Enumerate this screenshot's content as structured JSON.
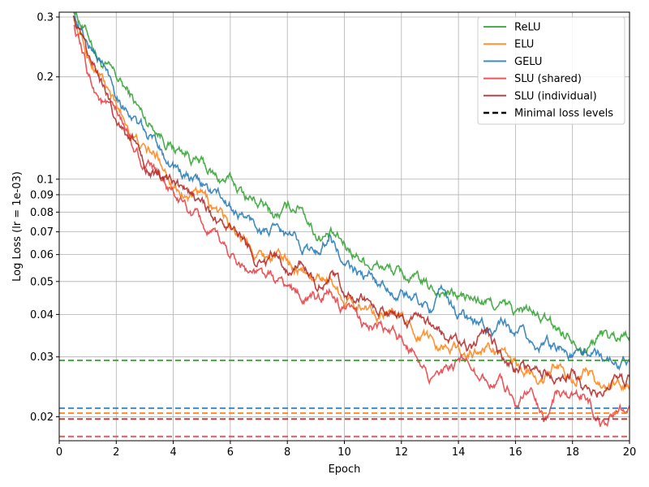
{
  "chart_data": {
    "type": "line",
    "xlabel": "Epoch",
    "ylabel": "Log Loss (lr = 1e-03)",
    "xlim": [
      0,
      20
    ],
    "ylim": [
      0.017,
      0.31
    ],
    "yscale": "log",
    "grid": true,
    "legend_position": "top-right",
    "x_ticks": [
      0,
      2,
      4,
      6,
      8,
      10,
      12,
      14,
      16,
      18,
      20
    ],
    "y_ticks": [
      {
        "value": 0.02,
        "label": "0.02"
      },
      {
        "value": 0.03,
        "label": "0.03"
      },
      {
        "value": 0.04,
        "label": "0.04"
      },
      {
        "value": 0.05,
        "label": "0.05"
      },
      {
        "value": 0.06,
        "label": "0.06"
      },
      {
        "value": 0.07,
        "label": "0.07"
      },
      {
        "value": 0.08,
        "label": "0.08"
      },
      {
        "value": 0.09,
        "label": "0.09"
      },
      {
        "value": 0.1,
        "label": "0.1"
      },
      {
        "value": 0.2,
        "label": "0.2"
      },
      {
        "value": 0.3,
        "label": "0.3"
      }
    ],
    "series": [
      {
        "name": "ReLU",
        "color": "#2ca02c",
        "min_loss": 0.0293,
        "x": [
          0.5,
          1,
          1.5,
          2,
          2.5,
          3,
          3.5,
          4,
          4.5,
          5,
          5.5,
          6,
          6.5,
          7,
          7.5,
          8,
          8.5,
          9,
          9.5,
          10,
          10.5,
          11,
          11.5,
          12,
          12.5,
          13,
          13.5,
          14,
          14.5,
          15,
          15.5,
          16,
          16.5,
          17,
          17.5,
          18,
          18.5,
          19,
          19.5,
          20
        ],
        "values": [
          0.32,
          0.27,
          0.22,
          0.195,
          0.175,
          0.15,
          0.14,
          0.125,
          0.12,
          0.11,
          0.1,
          0.098,
          0.09,
          0.085,
          0.078,
          0.08,
          0.085,
          0.07,
          0.068,
          0.063,
          0.06,
          0.057,
          0.055,
          0.052,
          0.05,
          0.047,
          0.047,
          0.045,
          0.044,
          0.043,
          0.042,
          0.04,
          0.041,
          0.038,
          0.036,
          0.035,
          0.033,
          0.035,
          0.034,
          0.036
        ]
      },
      {
        "name": "ELU",
        "color": "#ff7f0e",
        "min_loss": 0.0205,
        "x": [
          0.5,
          1,
          1.5,
          2,
          2.5,
          3,
          3.5,
          4,
          4.5,
          5,
          5.5,
          6,
          6.5,
          7,
          7.5,
          8,
          8.5,
          9,
          9.5,
          10,
          10.5,
          11,
          11.5,
          12,
          12.5,
          13,
          13.5,
          14,
          14.5,
          15,
          15.5,
          16,
          16.5,
          17,
          17.5,
          18,
          18.5,
          19,
          19.5,
          20
        ],
        "values": [
          0.3,
          0.23,
          0.2,
          0.16,
          0.14,
          0.12,
          0.115,
          0.1,
          0.09,
          0.088,
          0.08,
          0.072,
          0.068,
          0.062,
          0.06,
          0.058,
          0.055,
          0.05,
          0.052,
          0.045,
          0.043,
          0.042,
          0.04,
          0.038,
          0.036,
          0.034,
          0.033,
          0.032,
          0.031,
          0.032,
          0.03,
          0.028,
          0.027,
          0.026,
          0.028,
          0.026,
          0.027,
          0.024,
          0.025,
          0.024
        ]
      },
      {
        "name": "GELU",
        "color": "#1f77b4",
        "min_loss": 0.0212,
        "x": [
          0.5,
          1,
          1.5,
          2,
          2.5,
          3,
          3.5,
          4,
          4.5,
          5,
          5.5,
          6,
          6.5,
          7,
          7.5,
          8,
          8.5,
          9,
          9.5,
          10,
          10.5,
          11,
          11.5,
          12,
          12.5,
          13,
          13.5,
          14,
          14.5,
          15,
          15.5,
          16,
          16.5,
          17,
          17.5,
          18,
          18.5,
          19,
          19.5,
          20
        ],
        "values": [
          0.31,
          0.25,
          0.22,
          0.18,
          0.16,
          0.135,
          0.125,
          0.11,
          0.1,
          0.095,
          0.09,
          0.082,
          0.077,
          0.072,
          0.07,
          0.067,
          0.064,
          0.06,
          0.07,
          0.055,
          0.052,
          0.05,
          0.048,
          0.046,
          0.044,
          0.042,
          0.045,
          0.04,
          0.038,
          0.036,
          0.037,
          0.034,
          0.033,
          0.032,
          0.033,
          0.03,
          0.031,
          0.03,
          0.029,
          0.031
        ]
      },
      {
        "name": "SLU (shared)",
        "color": "#e8383d",
        "min_loss": 0.0175,
        "x": [
          0.5,
          1,
          1.5,
          2,
          2.5,
          3,
          3.5,
          4,
          4.5,
          5,
          5.5,
          6,
          6.5,
          7,
          7.5,
          8,
          8.5,
          9,
          9.5,
          10,
          10.5,
          11,
          11.5,
          12,
          12.5,
          13,
          13.5,
          14,
          14.5,
          15,
          15.5,
          16,
          16.5,
          17,
          17.5,
          18,
          18.5,
          19,
          19.5,
          20
        ],
        "values": [
          0.29,
          0.2,
          0.17,
          0.15,
          0.13,
          0.11,
          0.1,
          0.09,
          0.08,
          0.072,
          0.065,
          0.06,
          0.055,
          0.052,
          0.05,
          0.048,
          0.045,
          0.044,
          0.047,
          0.04,
          0.038,
          0.037,
          0.035,
          0.033,
          0.032,
          0.027,
          0.026,
          0.028,
          0.029,
          0.026,
          0.025,
          0.023,
          0.025,
          0.019,
          0.024,
          0.022,
          0.023,
          0.019,
          0.021,
          0.022
        ]
      },
      {
        "name": "SLU (individual)",
        "color": "#b22222",
        "min_loss": 0.0197,
        "x": [
          0.5,
          1,
          1.5,
          2,
          2.5,
          3,
          3.5,
          4,
          4.5,
          5,
          5.5,
          6,
          6.5,
          7,
          7.5,
          8,
          8.5,
          9,
          9.5,
          10,
          10.5,
          11,
          11.5,
          12,
          12.5,
          13,
          13.5,
          14,
          14.5,
          15,
          15.5,
          16,
          16.5,
          17,
          17.5,
          18,
          18.5,
          19,
          19.5,
          20
        ],
        "values": [
          0.31,
          0.22,
          0.19,
          0.15,
          0.135,
          0.115,
          0.1,
          0.095,
          0.088,
          0.085,
          0.075,
          0.07,
          0.064,
          0.058,
          0.06,
          0.055,
          0.058,
          0.05,
          0.052,
          0.046,
          0.044,
          0.042,
          0.04,
          0.038,
          0.037,
          0.035,
          0.034,
          0.032,
          0.031,
          0.036,
          0.03,
          0.028,
          0.027,
          0.028,
          0.025,
          0.027,
          0.023,
          0.024,
          0.025,
          0.025
        ]
      }
    ],
    "legend": {
      "entries": [
        "ReLU",
        "ELU",
        "GELU",
        "SLU (shared)",
        "SLU (individual)",
        "Minimal loss levels"
      ]
    }
  }
}
